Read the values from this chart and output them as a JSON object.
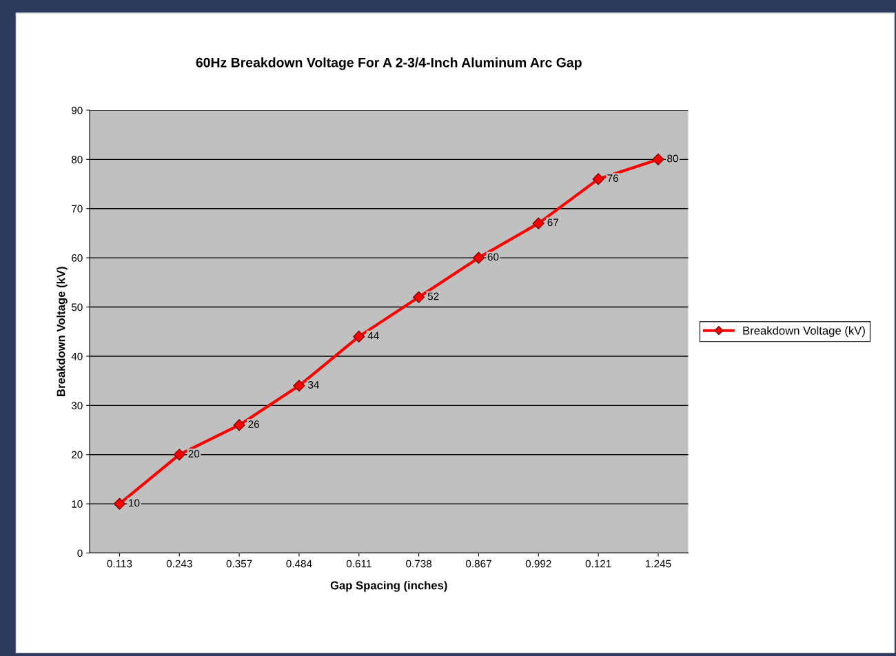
{
  "chart_data": {
    "type": "line",
    "title": "60Hz Breakdown Voltage For A 2-3/4-Inch Aluminum Arc Gap",
    "xlabel": "Gap Spacing (inches)",
    "ylabel": "Breakdown Voltage (kV)",
    "categories": [
      "0.113",
      "0.243",
      "0.357",
      "0.484",
      "0.611",
      "0.738",
      "0.867",
      "0.992",
      "0.121",
      "1.245"
    ],
    "series": [
      {
        "name": "Breakdown Voltage (kV)",
        "color": "#ff0000",
        "values": [
          10,
          20,
          26,
          34,
          44,
          52,
          60,
          67,
          76,
          80
        ]
      }
    ],
    "ylim": [
      0,
      90
    ],
    "yticks": [
      0,
      10,
      20,
      30,
      40,
      50,
      60,
      70,
      80,
      90
    ],
    "grid": "y",
    "legend": "right",
    "marker": "diamond",
    "line_style": "solid",
    "data_labels": true
  }
}
